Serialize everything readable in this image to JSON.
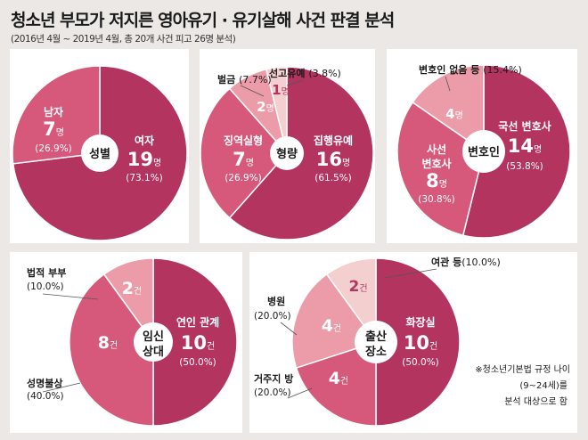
{
  "title": "청소년 부모가 저지른 영아유기 · 유기살해 사건 판결 분석",
  "subtitle": "(2016년 4월 ~ 2019년 4월, 총 20개 사건 피고 26명 분석)",
  "colors": {
    "dark": "#b3345f",
    "medium": "#d6597c",
    "light": "#ec9ba9",
    "pale": "#f4cfcf",
    "background": "#ebe8e6",
    "panel": "#ffffff"
  },
  "chart_data": [
    {
      "type": "pie",
      "title": "성별",
      "unit": "명",
      "slices": [
        {
          "label": "여자",
          "value": 19,
          "pct": "(73.1%)",
          "color": "dark"
        },
        {
          "label": "남자",
          "value": 7,
          "pct": "(26.9%)",
          "color": "medium"
        }
      ]
    },
    {
      "type": "pie",
      "title": "형량",
      "unit": "명",
      "slices": [
        {
          "label": "집행유예",
          "value": 16,
          "pct": "(61.5%)",
          "color": "dark"
        },
        {
          "label": "징역실형",
          "value": 7,
          "pct": "(26.9%)",
          "color": "medium"
        },
        {
          "label": "벌금",
          "value": 2,
          "pct": "(7.7%)",
          "color": "light"
        },
        {
          "label": "선고유예",
          "value": 1,
          "pct": "(3.8%)",
          "color": "pale"
        }
      ]
    },
    {
      "type": "pie",
      "title": "변호인",
      "unit": "명",
      "slices": [
        {
          "label": "국선 변호사",
          "value": 14,
          "pct": "(53.8%)",
          "color": "dark"
        },
        {
          "label": "사선 변호사",
          "value": 8,
          "pct": "(30.8%)",
          "color": "medium"
        },
        {
          "label": "변호인 없음 등",
          "value": 4,
          "pct": "(15.4%)",
          "color": "light"
        }
      ]
    },
    {
      "type": "pie",
      "title": "임신 상대",
      "unit": "건",
      "slices": [
        {
          "label": "연인 관계",
          "value": 10,
          "pct": "(50.0%)",
          "color": "dark"
        },
        {
          "label": "성명불상",
          "value": 8,
          "pct": "(40.0%)",
          "color": "medium"
        },
        {
          "label": "법적 부부",
          "value": 2,
          "pct": "(10.0%)",
          "color": "light"
        }
      ]
    },
    {
      "type": "pie",
      "title": "출산 장소",
      "unit": "건",
      "slices": [
        {
          "label": "화장실",
          "value": 10,
          "pct": "(50.0%)",
          "color": "dark"
        },
        {
          "label": "거주지 방",
          "value": 4,
          "pct": "(20.0%)",
          "color": "medium"
        },
        {
          "label": "병원",
          "value": 4,
          "pct": "(20.0%)",
          "color": "light"
        },
        {
          "label": "여관 등",
          "value": 2,
          "pct": "(10.0%)",
          "color": "pale"
        }
      ]
    }
  ],
  "footnote": [
    "※청소년기본법 규정 나이",
    "(9~24세)를",
    "분석 대상으로 함"
  ]
}
